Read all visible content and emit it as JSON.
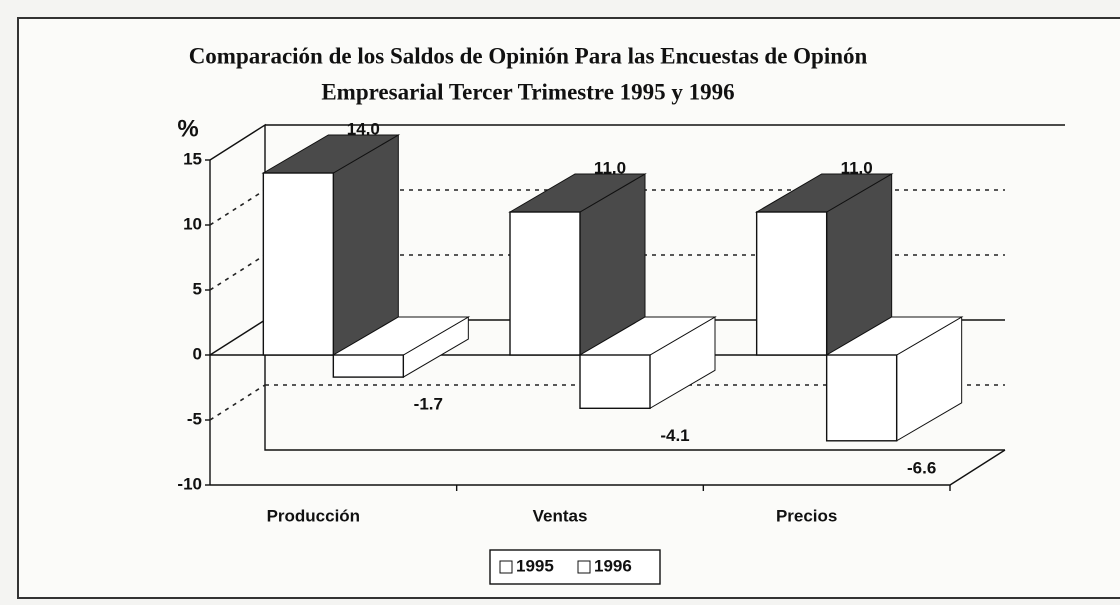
{
  "chart_data": {
    "type": "bar3d",
    "title": "Comparación de los Saldos de Opinión Para las Encuestas de Opinón",
    "subtitle": "Empresarial Tercer Trimestre 1995 y 1996",
    "y_label": "%",
    "categories": [
      "Producción",
      "Ventas",
      "Precios"
    ],
    "series": [
      {
        "name": "1995",
        "color": "#ffffff",
        "values": [
          14,
          11,
          11
        ],
        "value_labels": [
          "14.0",
          "11.0",
          "11.0"
        ]
      },
      {
        "name": "1996",
        "color": "#ffffff",
        "values": [
          -1.7,
          -4.1,
          -6.6
        ],
        "value_labels": [
          "-1.7",
          "-4.1",
          "-6.6"
        ]
      }
    ],
    "ylim": [
      -10,
      15
    ],
    "yticks": [
      -10,
      -5,
      0,
      5,
      10,
      15
    ],
    "grid": true,
    "legend": "bottom"
  }
}
